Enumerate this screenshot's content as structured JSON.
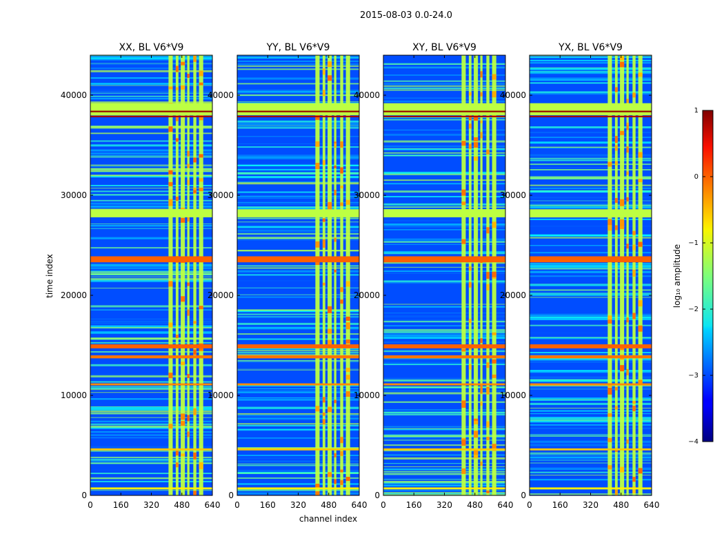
{
  "figure_title": "2015-08-03 0.0-24.0",
  "chart_data": {
    "type": "heatmap",
    "colormap": "jet",
    "xlabel": "channel index",
    "ylabel": "time index",
    "xlim": [
      0,
      640
    ],
    "ylim": [
      0,
      44000
    ],
    "x_ticks": [
      0,
      160,
      320,
      480,
      640
    ],
    "y_ticks": [
      0,
      10000,
      20000,
      30000,
      40000
    ],
    "panels": [
      {
        "title": "XX, BL V6*V9",
        "pol": "XX"
      },
      {
        "title": "YY, BL V6*V9",
        "pol": "YY"
      },
      {
        "title": "XY, BL V6*V9",
        "pol": "XY"
      },
      {
        "title": "YX, BL V6*V9",
        "pol": "YX"
      }
    ],
    "colorbar": {
      "label": "log₁₀ amplitude",
      "range": [
        -4,
        1
      ],
      "ticks": [
        1,
        0,
        -1,
        -2,
        -3,
        -4
      ],
      "tick_labels": [
        "1",
        "0",
        "−1",
        "−2",
        "−3",
        "−4"
      ]
    },
    "background_log_amplitude": -3.0,
    "rfi_channel_bands": [
      [
        410,
        432
      ],
      [
        448,
        462
      ],
      [
        474,
        496
      ],
      [
        508,
        520
      ],
      [
        540,
        556
      ],
      [
        570,
        592
      ]
    ],
    "flagged_time_bands": [
      {
        "t0": 38000,
        "t1": 39200,
        "log_amplitude": -1.2
      },
      {
        "t0": 38300,
        "t1": 38450,
        "log_amplitude": 0.9
      },
      {
        "t0": 37800,
        "t1": 37950,
        "log_amplitude": 0.8
      },
      {
        "t0": 27800,
        "t1": 28600,
        "log_amplitude": -1.2
      },
      {
        "t0": 23300,
        "t1": 23900,
        "log_amplitude": -0.1
      },
      {
        "t0": 14700,
        "t1": 15100,
        "log_amplitude": -0.1
      },
      {
        "t0": 13700,
        "t1": 14000,
        "log_amplitude": -0.2
      },
      {
        "t0": 11000,
        "t1": 11200,
        "log_amplitude": -0.3
      },
      {
        "t0": 4500,
        "t1": 4700,
        "log_amplitude": -0.6
      },
      {
        "t0": 600,
        "t1": 800,
        "log_amplitude": -0.8
      }
    ]
  }
}
